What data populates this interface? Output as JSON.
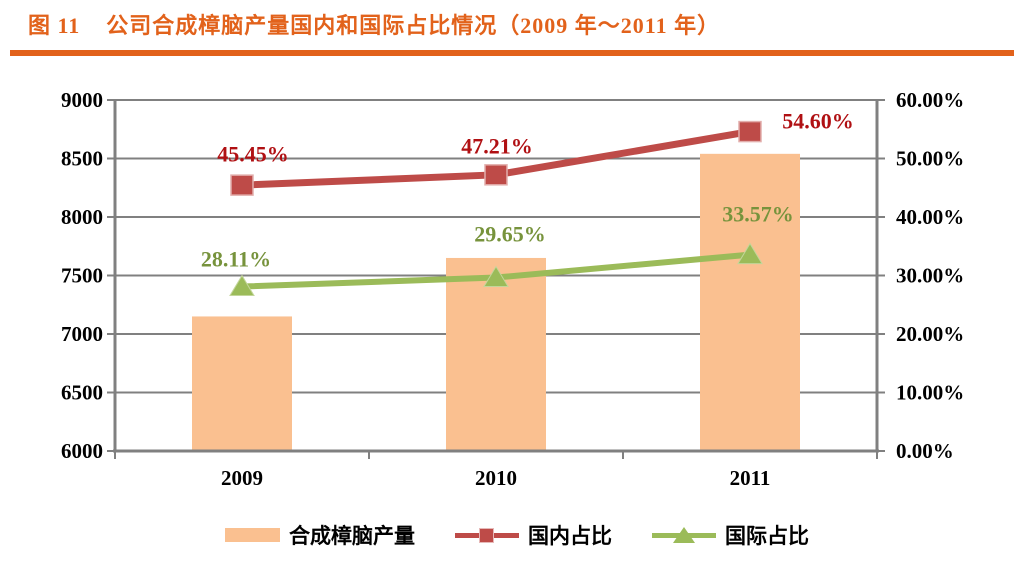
{
  "figure": {
    "label": "图 11",
    "title": "公司合成樟脑产量国内和国际占比情况（2009 年～2011 年）",
    "accent_color": "#E2621B"
  },
  "chart_data": {
    "type": "bar",
    "subtype": "combo-bar-line-dual-axis",
    "categories": [
      "2009",
      "2010",
      "2011"
    ],
    "bar_series": {
      "name": "合成樟脑产量",
      "axis": "left",
      "color": "#FAC090",
      "values": [
        7150,
        7650,
        8540
      ]
    },
    "line_series": [
      {
        "name": "国内占比",
        "axis": "right",
        "color": "#BE4B48",
        "label_color": "#B01013",
        "marker": "square",
        "values": [
          45.45,
          47.21,
          54.6
        ],
        "labels": [
          "45.45%",
          "47.21%",
          "54.60%"
        ]
      },
      {
        "name": "国际占比",
        "axis": "right",
        "color": "#9BBB59",
        "label_color": "#77933C",
        "marker": "triangle",
        "values": [
          28.11,
          29.65,
          33.57
        ],
        "labels": [
          "28.11%",
          "29.65%",
          "33.57%"
        ]
      }
    ],
    "axes": {
      "left": {
        "min": 6000,
        "max": 9000,
        "step": 500,
        "ticks": [
          "9000",
          "8500",
          "8000",
          "7500",
          "7000",
          "6500",
          "6000"
        ]
      },
      "right": {
        "min": 0,
        "max": 60,
        "step": 10,
        "ticks": [
          "60.00%",
          "50.00%",
          "40.00%",
          "30.00%",
          "20.00%",
          "10.00%",
          "0.00%"
        ]
      }
    },
    "grid": true,
    "legend": {
      "position": "bottom",
      "entries": [
        "合成樟脑产量",
        "国内占比",
        "国际占比"
      ]
    }
  },
  "colors": {
    "grid": "#808080",
    "axis": "#808080",
    "tick_text": "#000000",
    "background": "#FFFFFF"
  }
}
